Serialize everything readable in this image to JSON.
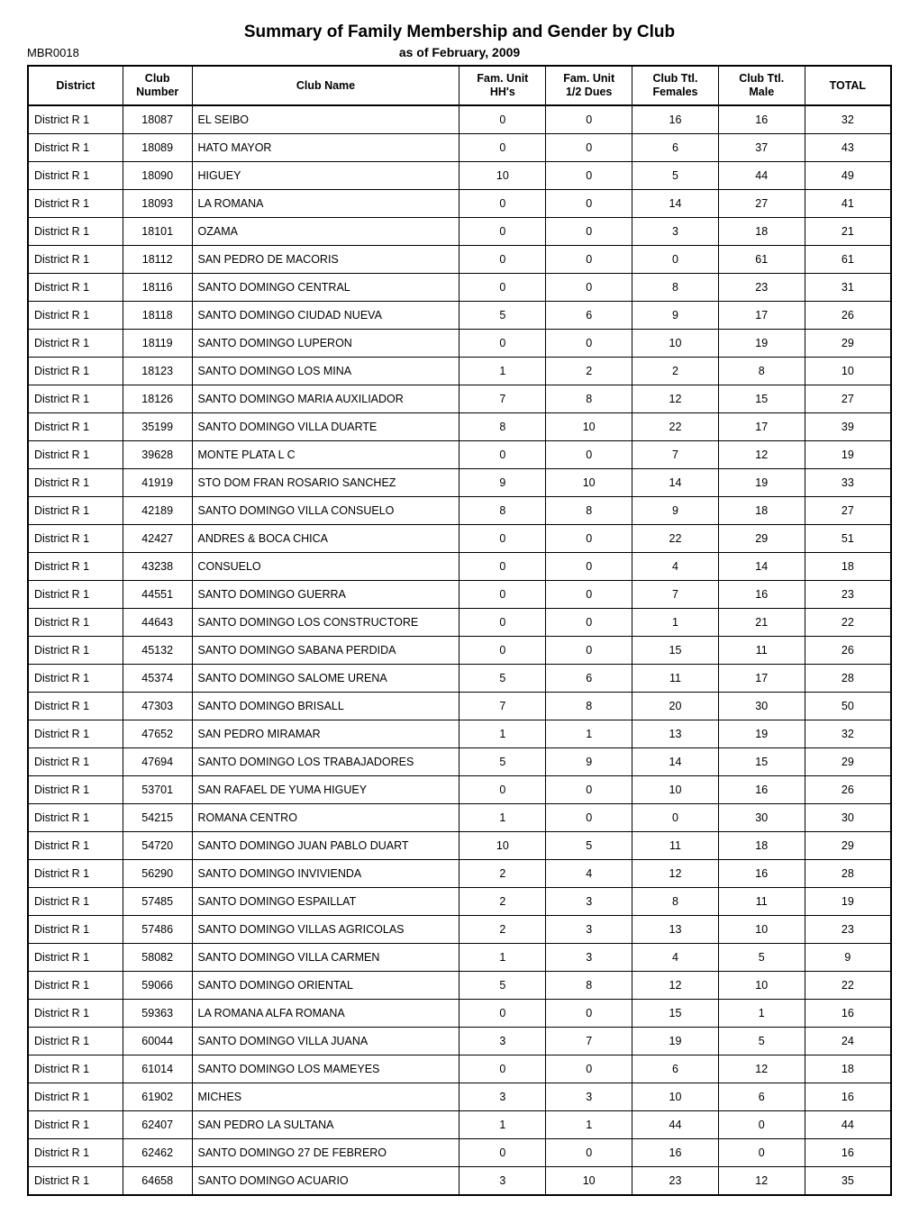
{
  "report": {
    "title": "Summary of Family Membership and Gender by Club",
    "id": "MBR0018",
    "as_of": "as of February, 2009"
  },
  "columns": [
    {
      "key": "district",
      "label": "District",
      "align": "left"
    },
    {
      "key": "number",
      "label": "Club\nNumber",
      "align": "center"
    },
    {
      "key": "name",
      "label": "Club Name",
      "align": "left"
    },
    {
      "key": "hhs",
      "label": "Fam. Unit\nHH's",
      "align": "center"
    },
    {
      "key": "halfdues",
      "label": "Fam. Unit\n1/2 Dues",
      "align": "center"
    },
    {
      "key": "females",
      "label": "Club Ttl.\nFemales",
      "align": "center"
    },
    {
      "key": "males",
      "label": "Club Ttl.\nMale",
      "align": "center"
    },
    {
      "key": "total",
      "label": "TOTAL",
      "align": "center"
    }
  ],
  "rows": [
    [
      "District R 1",
      "18087",
      "EL SEIBO",
      "0",
      "0",
      "16",
      "16",
      "32"
    ],
    [
      "District R 1",
      "18089",
      "HATO MAYOR",
      "0",
      "0",
      "6",
      "37",
      "43"
    ],
    [
      "District R 1",
      "18090",
      "HIGUEY",
      "10",
      "0",
      "5",
      "44",
      "49"
    ],
    [
      "District R 1",
      "18093",
      "LA ROMANA",
      "0",
      "0",
      "14",
      "27",
      "41"
    ],
    [
      "District R 1",
      "18101",
      "OZAMA",
      "0",
      "0",
      "3",
      "18",
      "21"
    ],
    [
      "District R 1",
      "18112",
      "SAN PEDRO DE MACORIS",
      "0",
      "0",
      "0",
      "61",
      "61"
    ],
    [
      "District R 1",
      "18116",
      "SANTO DOMINGO CENTRAL",
      "0",
      "0",
      "8",
      "23",
      "31"
    ],
    [
      "District R 1",
      "18118",
      "SANTO DOMINGO CIUDAD NUEVA",
      "5",
      "6",
      "9",
      "17",
      "26"
    ],
    [
      "District R 1",
      "18119",
      "SANTO DOMINGO LUPERON",
      "0",
      "0",
      "10",
      "19",
      "29"
    ],
    [
      "District R 1",
      "18123",
      "SANTO DOMINGO LOS MINA",
      "1",
      "2",
      "2",
      "8",
      "10"
    ],
    [
      "District R 1",
      "18126",
      "SANTO DOMINGO MARIA AUXILIADOR",
      "7",
      "8",
      "12",
      "15",
      "27"
    ],
    [
      "District R 1",
      "35199",
      "SANTO DOMINGO VILLA DUARTE",
      "8",
      "10",
      "22",
      "17",
      "39"
    ],
    [
      "District R 1",
      "39628",
      "MONTE PLATA L C",
      "0",
      "0",
      "7",
      "12",
      "19"
    ],
    [
      "District R 1",
      "41919",
      "STO DOM FRAN ROSARIO SANCHEZ",
      "9",
      "10",
      "14",
      "19",
      "33"
    ],
    [
      "District R 1",
      "42189",
      "SANTO DOMINGO VILLA CONSUELO",
      "8",
      "8",
      "9",
      "18",
      "27"
    ],
    [
      "District R 1",
      "42427",
      "ANDRES & BOCA CHICA",
      "0",
      "0",
      "22",
      "29",
      "51"
    ],
    [
      "District R 1",
      "43238",
      "CONSUELO",
      "0",
      "0",
      "4",
      "14",
      "18"
    ],
    [
      "District R 1",
      "44551",
      "SANTO DOMINGO GUERRA",
      "0",
      "0",
      "7",
      "16",
      "23"
    ],
    [
      "District R 1",
      "44643",
      "SANTO DOMINGO LOS CONSTRUCTORE",
      "0",
      "0",
      "1",
      "21",
      "22"
    ],
    [
      "District R 1",
      "45132",
      "SANTO DOMINGO SABANA PERDIDA",
      "0",
      "0",
      "15",
      "11",
      "26"
    ],
    [
      "District R 1",
      "45374",
      "SANTO DOMINGO SALOME URENA",
      "5",
      "6",
      "11",
      "17",
      "28"
    ],
    [
      "District R 1",
      "47303",
      "SANTO DOMINGO BRISALL",
      "7",
      "8",
      "20",
      "30",
      "50"
    ],
    [
      "District R 1",
      "47652",
      "SAN PEDRO MIRAMAR",
      "1",
      "1",
      "13",
      "19",
      "32"
    ],
    [
      "District R 1",
      "47694",
      "SANTO DOMINGO LOS TRABAJADORES",
      "5",
      "9",
      "14",
      "15",
      "29"
    ],
    [
      "District R 1",
      "53701",
      "SAN RAFAEL DE YUMA HIGUEY",
      "0",
      "0",
      "10",
      "16",
      "26"
    ],
    [
      "District R 1",
      "54215",
      "ROMANA CENTRO",
      "1",
      "0",
      "0",
      "30",
      "30"
    ],
    [
      "District R 1",
      "54720",
      "SANTO DOMINGO JUAN PABLO DUART",
      "10",
      "5",
      "11",
      "18",
      "29"
    ],
    [
      "District R 1",
      "56290",
      "SANTO DOMINGO INVIVIENDA",
      "2",
      "4",
      "12",
      "16",
      "28"
    ],
    [
      "District R 1",
      "57485",
      "SANTO DOMINGO ESPAILLAT",
      "2",
      "3",
      "8",
      "11",
      "19"
    ],
    [
      "District R 1",
      "57486",
      "SANTO DOMINGO VILLAS AGRICOLAS",
      "2",
      "3",
      "13",
      "10",
      "23"
    ],
    [
      "District R 1",
      "58082",
      "SANTO DOMINGO VILLA CARMEN",
      "1",
      "3",
      "4",
      "5",
      "9"
    ],
    [
      "District R 1",
      "59066",
      "SANTO DOMINGO ORIENTAL",
      "5",
      "8",
      "12",
      "10",
      "22"
    ],
    [
      "District R 1",
      "59363",
      "LA ROMANA ALFA ROMANA",
      "0",
      "0",
      "15",
      "1",
      "16"
    ],
    [
      "District R 1",
      "60044",
      "SANTO DOMINGO VILLA JUANA",
      "3",
      "7",
      "19",
      "5",
      "24"
    ],
    [
      "District R 1",
      "61014",
      "SANTO DOMINGO LOS MAMEYES",
      "0",
      "0",
      "6",
      "12",
      "18"
    ],
    [
      "District R 1",
      "61902",
      "MICHES",
      "3",
      "3",
      "10",
      "6",
      "16"
    ],
    [
      "District R 1",
      "62407",
      "SAN PEDRO LA SULTANA",
      "1",
      "1",
      "44",
      "0",
      "44"
    ],
    [
      "District R 1",
      "62462",
      "SANTO DOMINGO 27 DE FEBRERO",
      "0",
      "0",
      "16",
      "0",
      "16"
    ],
    [
      "District R 1",
      "64658",
      "SANTO DOMINGO ACUARIO",
      "3",
      "10",
      "23",
      "12",
      "35"
    ]
  ],
  "style": {
    "font_family": "Arial, Helvetica, sans-serif",
    "title_fontsize": 19,
    "header_fontsize": 12.5,
    "cell_fontsize": 12.5,
    "border_color": "#000000",
    "outer_border_width": 2,
    "inner_border_width": 1,
    "background": "#ffffff",
    "text_color": "#000000"
  }
}
